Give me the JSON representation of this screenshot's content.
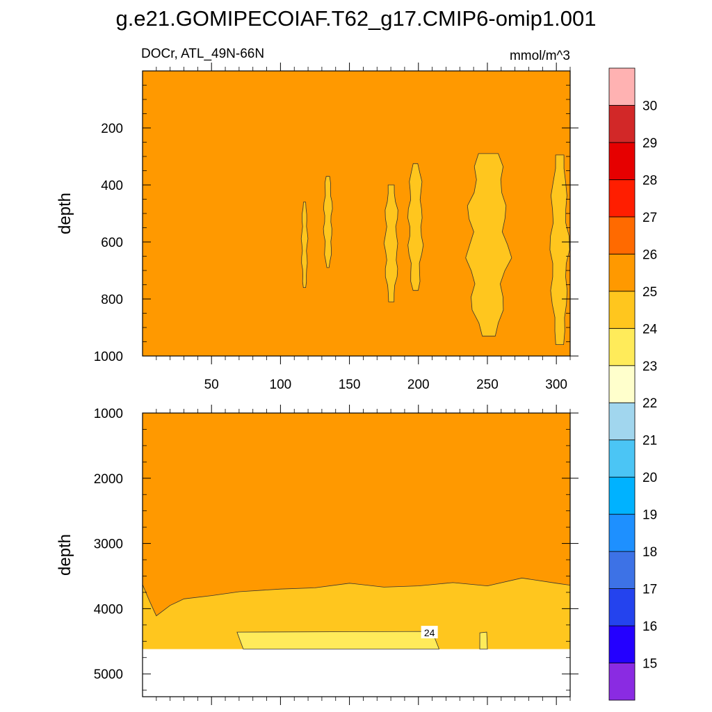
{
  "chart_data": {
    "type": "heatmap",
    "title": "g.e21.GOMIPECOIAF.T62_g17.CMIP6-omip1.001",
    "subtitle_left": "DOCr, ATL_49N-66N",
    "subtitle_right": "mmol/m^3",
    "xlabel": "",
    "ylabel": "depth",
    "x_range": [
      0,
      310
    ],
    "x_ticks": [
      50,
      100,
      150,
      200,
      250,
      300
    ],
    "x_tick_labels": [
      "50",
      "100",
      "150",
      "200",
      "250",
      "300"
    ],
    "colorbar": {
      "levels": [
        15,
        16,
        17,
        18,
        19,
        20,
        21,
        22,
        23,
        24,
        25,
        26,
        27,
        28,
        29,
        30
      ],
      "level_labels": [
        "15",
        "16",
        "17",
        "18",
        "19",
        "20",
        "21",
        "22",
        "23",
        "24",
        "25",
        "26",
        "27",
        "28",
        "29",
        "30"
      ],
      "colors": [
        "#8a2be2",
        "#2400ff",
        "#2443ee",
        "#3d72e6",
        "#1e90ff",
        "#00b2ff",
        "#4bc5f5",
        "#a1d6ee",
        "#ffffcc",
        "#ffeb5a",
        "#ffc61e",
        "#ff9900",
        "#ff6a00",
        "#ff1e00",
        "#e60000",
        "#d22828",
        "#ffb2b2"
      ]
    },
    "panels": [
      {
        "name": "upper",
        "y_range": [
          0,
          1000
        ],
        "y_ticks": [
          200,
          400,
          600,
          800,
          1000
        ],
        "y_tick_labels": [
          "200",
          "400",
          "600",
          "800",
          "1000"
        ],
        "background_level": "24-25",
        "background_color": "#ff9900",
        "regions": [
          {
            "level": "23-24",
            "color": "#ffc61e",
            "x": [
              115,
              120
            ],
            "depth": [
              460,
              760
            ]
          },
          {
            "level": "23-24",
            "color": "#ffc61e",
            "x": [
              131,
              138
            ],
            "depth": [
              370,
              690
            ]
          },
          {
            "level": "23-24",
            "color": "#ffc61e",
            "x": [
              175,
              186
            ],
            "depth": [
              400,
              810
            ]
          },
          {
            "level": "23-24",
            "color": "#ffc61e",
            "x": [
              192,
              204
            ],
            "depth": [
              325,
              770
            ]
          },
          {
            "level": "23-24",
            "color": "#ffc61e",
            "x": [
              234,
              268
            ],
            "depth": [
              290,
              930
            ]
          },
          {
            "level": "23-24",
            "color": "#ffc61e",
            "x": [
              295,
              310
            ],
            "depth": [
              295,
              960
            ]
          }
        ]
      },
      {
        "name": "lower",
        "y_range": [
          1000,
          5350
        ],
        "y_ticks": [
          1000,
          2000,
          3000,
          4000,
          5000
        ],
        "y_tick_labels": [
          "1000",
          "2000",
          "3000",
          "4000",
          "5000"
        ],
        "background_level": "24-25",
        "background_color": "#ff9900",
        "ocean_floor_depth": 4620,
        "contour_25_depth": {
          "x": [
            0,
            5,
            10,
            20,
            30,
            50,
            70,
            100,
            125,
            150,
            175,
            200,
            225,
            250,
            275,
            300,
            310
          ],
          "depth": [
            3630,
            3880,
            4110,
            3950,
            3850,
            3800,
            3740,
            3700,
            3680,
            3610,
            3670,
            3650,
            3600,
            3650,
            3530,
            3610,
            3640
          ]
        },
        "regions": [
          {
            "level": "22-23",
            "color": "#ffeb5a",
            "x": [
              68,
              215
            ],
            "depth": [
              4360,
              4620
            ]
          },
          {
            "level": "22-23",
            "color": "#ffeb5a",
            "x": [
              244,
              250
            ],
            "depth": [
              4370,
              4620
            ]
          }
        ],
        "contour_labels": [
          {
            "text": "24",
            "x": 208,
            "depth": 4370
          }
        ]
      }
    ]
  }
}
